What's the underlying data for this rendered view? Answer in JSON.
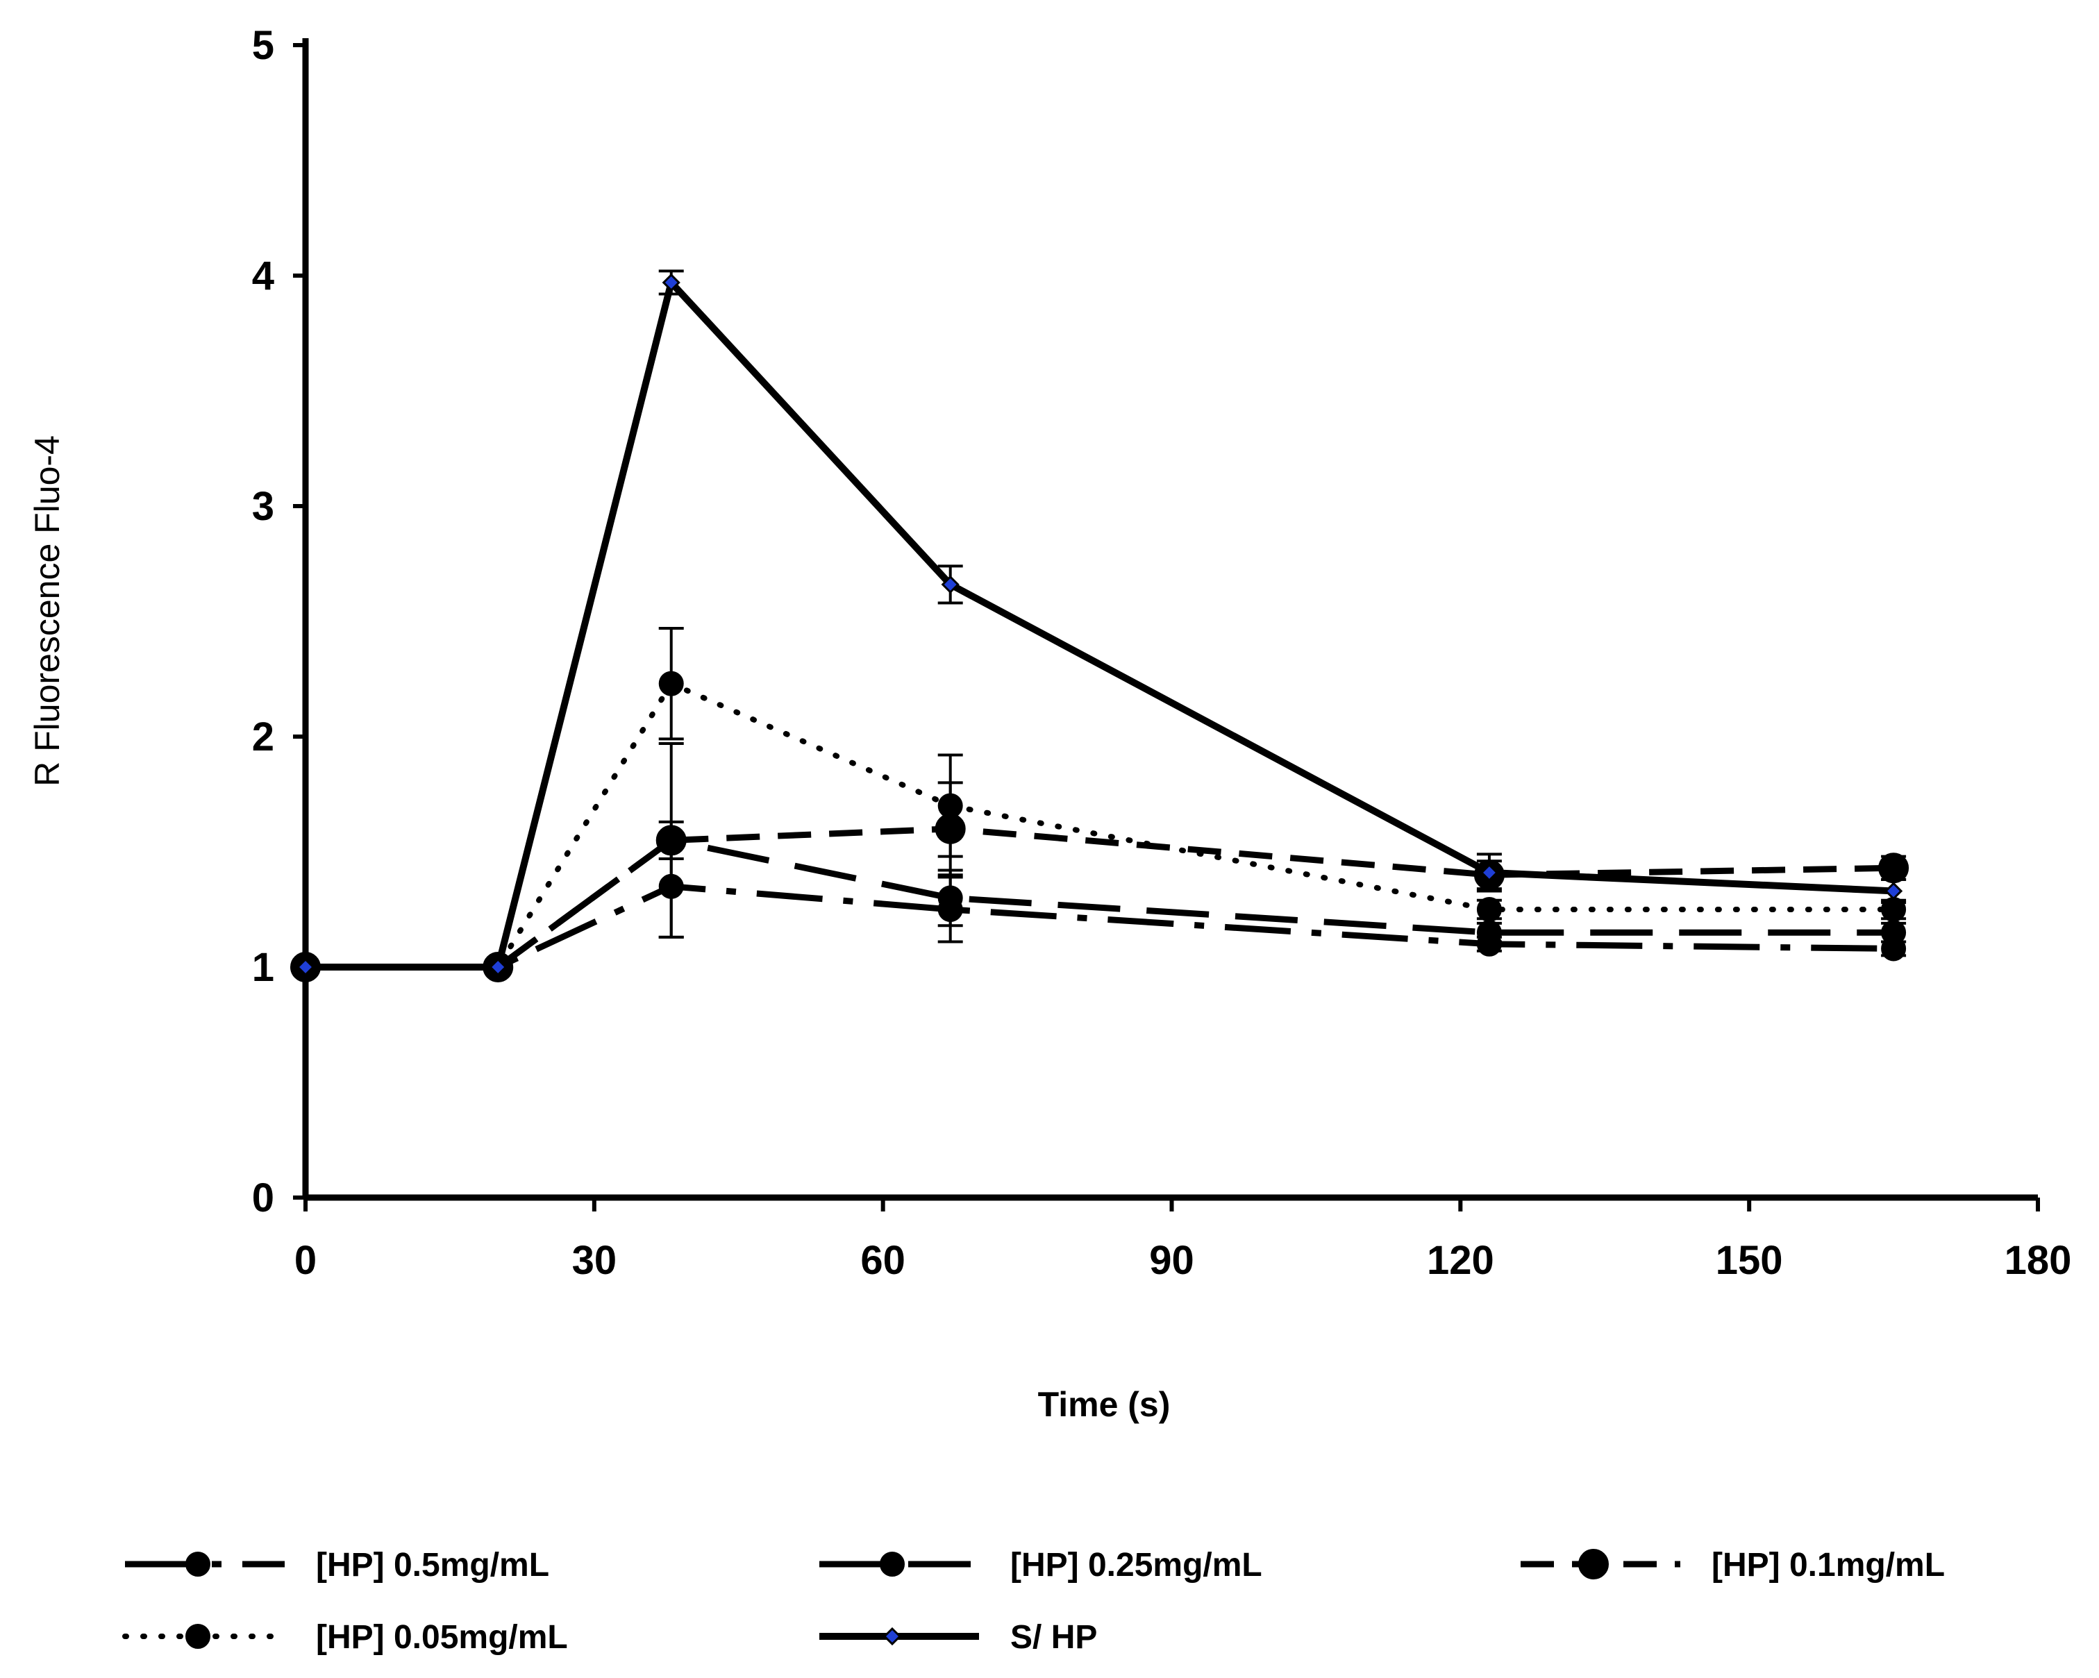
{
  "chart_data": {
    "type": "line",
    "title": "",
    "xlabel": "Time  (s)",
    "ylabel": "R Fluorescence  Fluo-4",
    "xlim": [
      0,
      180
    ],
    "ylim": [
      0,
      5
    ],
    "xticks": [
      0,
      30,
      60,
      90,
      120,
      150,
      180
    ],
    "yticks": [
      0,
      1,
      2,
      3,
      4,
      5
    ],
    "grid": false,
    "legend_position": "bottom",
    "series": [
      {
        "name": "[HP] 0.5mg/mL",
        "style": "dash-dot",
        "marker": "circle",
        "color": "#000000",
        "x": [
          0,
          20,
          38,
          67,
          123,
          165
        ],
        "y": [
          1.0,
          1.0,
          1.35,
          1.25,
          1.1,
          1.08
        ],
        "err": [
          0,
          0,
          0.22,
          0.14,
          0.03,
          0.03
        ]
      },
      {
        "name": "[HP] 0.25mg/mL",
        "style": "long-dash",
        "marker": "circle",
        "color": "#000000",
        "x": [
          0,
          20,
          38,
          67,
          123,
          165
        ],
        "y": [
          1.0,
          1.0,
          1.55,
          1.3,
          1.15,
          1.15
        ],
        "err": [
          0,
          0,
          0.42,
          0.12,
          0.04,
          0.04
        ]
      },
      {
        "name": "[HP] 0.1mg/mL",
        "style": "dash",
        "marker": "circle-large",
        "color": "#000000",
        "x": [
          0,
          20,
          38,
          67,
          123,
          165
        ],
        "y": [
          1.0,
          1.0,
          1.55,
          1.6,
          1.4,
          1.43
        ],
        "err": [
          0,
          0,
          0.08,
          0.2,
          0.06,
          0.05
        ]
      },
      {
        "name": "[HP] 0.05mg/mL",
        "style": "dotted",
        "marker": "circle",
        "color": "#000000",
        "x": [
          0,
          20,
          38,
          67,
          123,
          165
        ],
        "y": [
          1.0,
          1.0,
          2.23,
          1.7,
          1.25,
          1.25
        ],
        "err": [
          0,
          0,
          0.24,
          0.22,
          0.04,
          0.04
        ]
      },
      {
        "name": "S/ HP",
        "style": "solid",
        "marker": "diamond",
        "color": "#000000",
        "marker_color": "#1f3fd6",
        "x": [
          0,
          20,
          38,
          67,
          123,
          165
        ],
        "y": [
          1.0,
          1.0,
          3.97,
          2.66,
          1.41,
          1.33
        ],
        "err": [
          0,
          0,
          0.05,
          0.08,
          0.08,
          0.05
        ]
      }
    ]
  }
}
